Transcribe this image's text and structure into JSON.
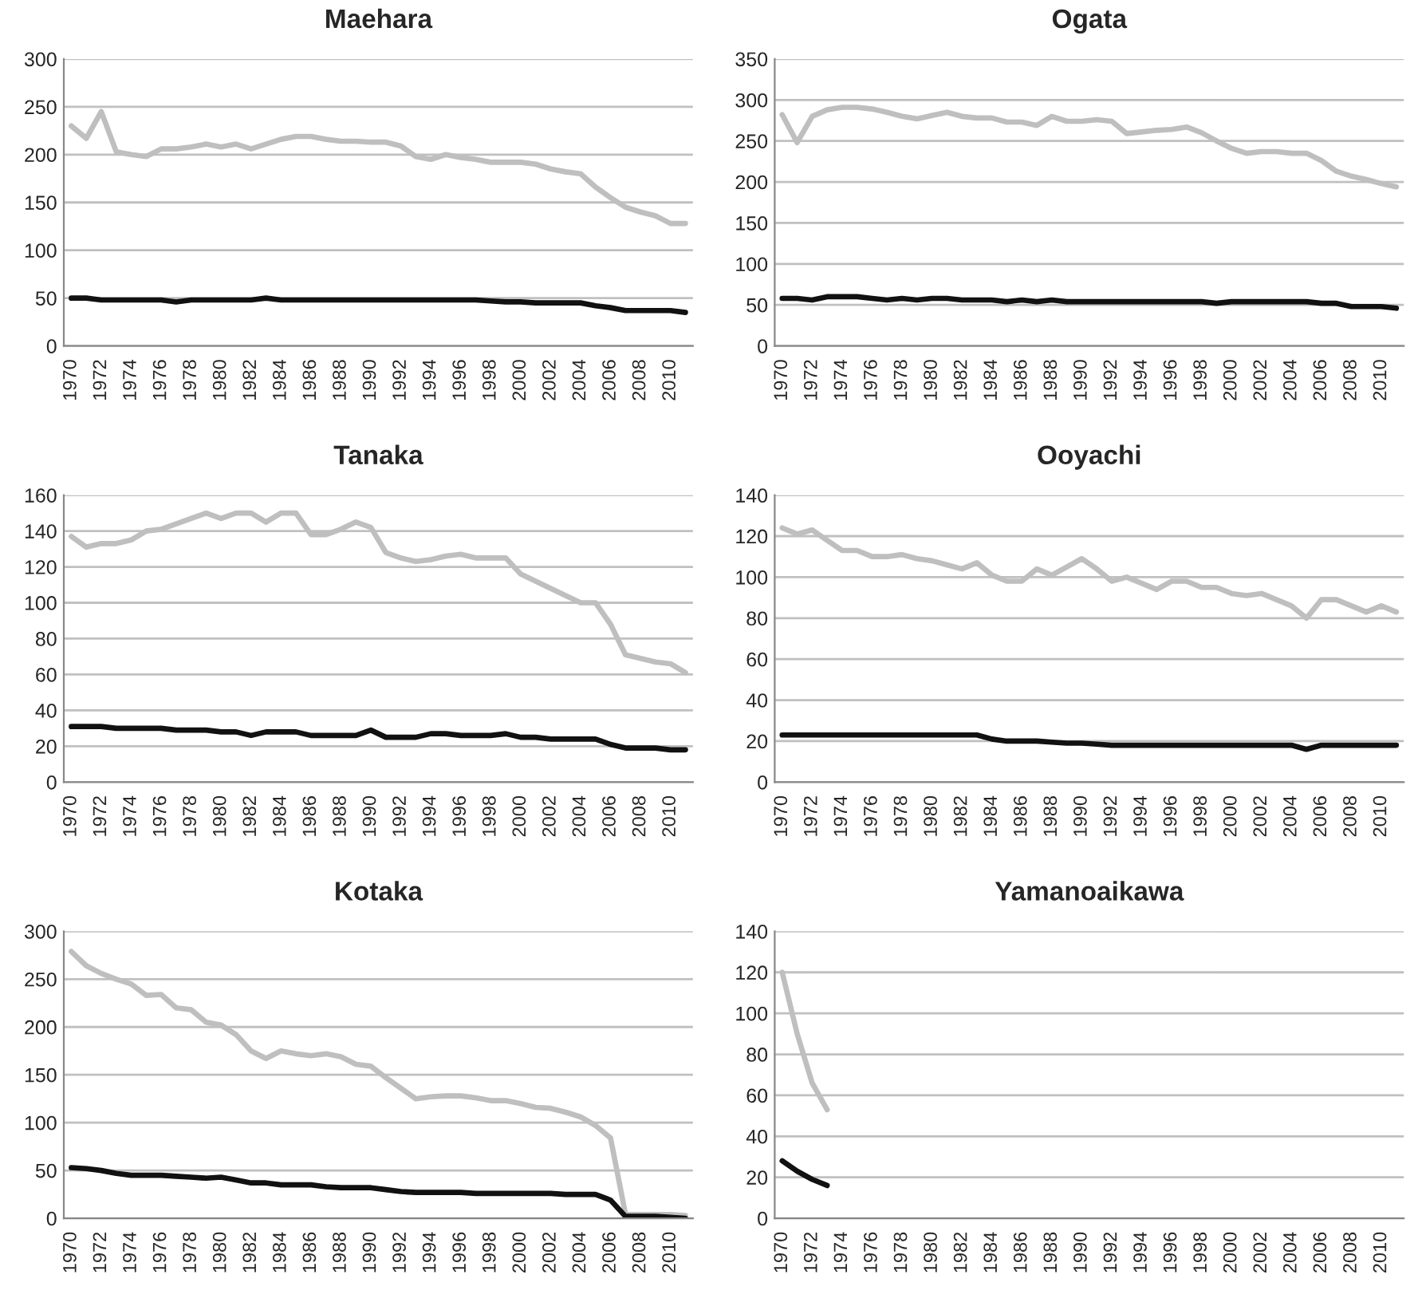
{
  "chart_data": [
    {
      "type": "line",
      "title": "Maehara",
      "categories": [
        "1970",
        null,
        "1972",
        null,
        "1974",
        null,
        "1976",
        null,
        "1978",
        null,
        "1980",
        null,
        "1982",
        null,
        "1984",
        null,
        "1986",
        null,
        "1988",
        null,
        "1990",
        null,
        "1992",
        null,
        "1994",
        null,
        "1996",
        null,
        "1998",
        null,
        "2000",
        null,
        "2002",
        null,
        "2004",
        null,
        "2006",
        null,
        "2008",
        null,
        "2010",
        null
      ],
      "ylim": [
        0,
        300
      ],
      "yticks": [
        0,
        50,
        100,
        150,
        200,
        250,
        300
      ],
      "grid": "y",
      "series": [
        {
          "color": "#bfbfbf",
          "values": [
            230,
            217,
            245,
            203,
            200,
            198,
            206,
            206,
            208,
            211,
            208,
            211,
            206,
            211,
            216,
            219,
            219,
            216,
            214,
            214,
            213,
            213,
            209,
            198,
            195,
            200,
            197,
            195,
            192,
            192,
            192,
            190,
            185,
            182,
            180,
            166,
            155,
            145,
            140,
            136,
            128,
            128
          ]
        },
        {
          "color": "#111111",
          "values": [
            50,
            50,
            48,
            48,
            48,
            48,
            48,
            46,
            48,
            48,
            48,
            48,
            48,
            50,
            48,
            48,
            48,
            48,
            48,
            48,
            48,
            48,
            48,
            48,
            48,
            48,
            48,
            48,
            47,
            46,
            46,
            45,
            45,
            45,
            45,
            42,
            40,
            37,
            37,
            37,
            37,
            35
          ]
        }
      ]
    },
    {
      "type": "line",
      "title": "Ogata",
      "categories": [
        "1970",
        null,
        "1972",
        null,
        "1974",
        null,
        "1976",
        null,
        "1978",
        null,
        "1980",
        null,
        "1982",
        null,
        "1984",
        null,
        "1986",
        null,
        "1988",
        null,
        "1990",
        null,
        "1992",
        null,
        "1994",
        null,
        "1996",
        null,
        "1998",
        null,
        "2000",
        null,
        "2002",
        null,
        "2004",
        null,
        "2006",
        null,
        "2008",
        null,
        "2010",
        null
      ],
      "ylim": [
        0,
        350
      ],
      "yticks": [
        0,
        50,
        100,
        150,
        200,
        250,
        300,
        350
      ],
      "grid": "y",
      "series": [
        {
          "color": "#bfbfbf",
          "values": [
            282,
            248,
            280,
            288,
            291,
            291,
            289,
            285,
            280,
            277,
            281,
            285,
            280,
            278,
            278,
            273,
            273,
            269,
            280,
            274,
            274,
            276,
            274,
            259,
            261,
            263,
            264,
            267,
            260,
            250,
            241,
            235,
            237,
            237,
            235,
            235,
            226,
            213,
            207,
            203,
            198,
            194
          ]
        },
        {
          "color": "#111111",
          "values": [
            58,
            58,
            56,
            60,
            60,
            60,
            58,
            56,
            58,
            56,
            58,
            58,
            56,
            56,
            56,
            54,
            56,
            54,
            56,
            54,
            54,
            54,
            54,
            54,
            54,
            54,
            54,
            54,
            54,
            52,
            54,
            54,
            54,
            54,
            54,
            54,
            52,
            52,
            48,
            48,
            48,
            46
          ]
        }
      ]
    },
    {
      "type": "line",
      "title": "Tanaka",
      "categories": [
        "1970",
        null,
        "1972",
        null,
        "1974",
        null,
        "1976",
        null,
        "1978",
        null,
        "1980",
        null,
        "1982",
        null,
        "1984",
        null,
        "1986",
        null,
        "1988",
        null,
        "1990",
        null,
        "1992",
        null,
        "1994",
        null,
        "1996",
        null,
        "1998",
        null,
        "2000",
        null,
        "2002",
        null,
        "2004",
        null,
        "2006",
        null,
        "2008",
        null,
        "2010",
        null
      ],
      "ylim": [
        0,
        160
      ],
      "yticks": [
        0,
        20,
        40,
        60,
        80,
        100,
        120,
        140,
        160
      ],
      "grid": "y",
      "series": [
        {
          "color": "#bfbfbf",
          "values": [
            137,
            131,
            133,
            133,
            135,
            140,
            141,
            144,
            147,
            150,
            147,
            150,
            150,
            145,
            150,
            150,
            138,
            138,
            141,
            145,
            142,
            128,
            125,
            123,
            124,
            126,
            127,
            125,
            125,
            125,
            116,
            112,
            108,
            104,
            100,
            100,
            88,
            71,
            69,
            67,
            66,
            61
          ]
        },
        {
          "color": "#111111",
          "values": [
            31,
            31,
            31,
            30,
            30,
            30,
            30,
            29,
            29,
            29,
            28,
            28,
            26,
            28,
            28,
            28,
            26,
            26,
            26,
            26,
            29,
            25,
            25,
            25,
            27,
            27,
            26,
            26,
            26,
            27,
            25,
            25,
            24,
            24,
            24,
            24,
            21,
            19,
            19,
            19,
            18,
            18
          ]
        }
      ]
    },
    {
      "type": "line",
      "title": "Ooyachi",
      "categories": [
        "1970",
        null,
        "1972",
        null,
        "1974",
        null,
        "1976",
        null,
        "1978",
        null,
        "1980",
        null,
        "1982",
        null,
        "1984",
        null,
        "1986",
        null,
        "1988",
        null,
        "1990",
        null,
        "1992",
        null,
        "1994",
        null,
        "1996",
        null,
        "1998",
        null,
        "2000",
        null,
        "2002",
        null,
        "2004",
        null,
        "2006",
        null,
        "2008",
        null,
        "2010",
        null
      ],
      "ylim": [
        0,
        140
      ],
      "yticks": [
        0,
        20,
        40,
        60,
        80,
        100,
        120,
        140
      ],
      "grid": "y",
      "series": [
        {
          "color": "#bfbfbf",
          "values": [
            124,
            121,
            123,
            118,
            113,
            113,
            110,
            110,
            111,
            109,
            108,
            106,
            104,
            107,
            101,
            98,
            98,
            104,
            101,
            105,
            109,
            104,
            98,
            100,
            97,
            94,
            98,
            98,
            95,
            95,
            92,
            91,
            92,
            89,
            86,
            80,
            89,
            89,
            86,
            83,
            86,
            83
          ]
        },
        {
          "color": "#111111",
          "values": [
            23,
            23,
            23,
            23,
            23,
            23,
            23,
            23,
            23,
            23,
            23,
            23,
            23,
            23,
            21,
            20,
            20,
            20,
            19.5,
            19,
            19,
            18.5,
            18,
            18,
            18,
            18,
            18,
            18,
            18,
            18,
            18,
            18,
            18,
            18,
            18,
            16,
            18,
            18,
            18,
            18,
            18,
            18
          ]
        }
      ]
    },
    {
      "type": "line",
      "title": "Kotaka",
      "categories": [
        "1970",
        null,
        "1972",
        null,
        "1974",
        null,
        "1976",
        null,
        "1978",
        null,
        "1980",
        null,
        "1982",
        null,
        "1984",
        null,
        "1986",
        null,
        "1988",
        null,
        "1990",
        null,
        "1992",
        null,
        "1994",
        null,
        "1996",
        null,
        "1998",
        null,
        "2000",
        null,
        "2002",
        null,
        "2004",
        null,
        "2006",
        null,
        "2008",
        null,
        "2010",
        null
      ],
      "ylim": [
        0,
        300
      ],
      "yticks": [
        0,
        50,
        100,
        150,
        200,
        250,
        300
      ],
      "grid": "y",
      "series": [
        {
          "color": "#bfbfbf",
          "values": [
            279,
            264,
            256,
            250,
            245,
            233,
            234,
            220,
            218,
            205,
            202,
            192,
            175,
            167,
            175,
            172,
            170,
            172,
            169,
            161,
            159,
            147,
            136,
            125,
            127,
            128,
            128,
            126,
            123,
            123,
            120,
            116,
            115,
            111,
            106,
            97,
            84,
            4,
            4,
            4,
            4,
            3
          ]
        },
        {
          "color": "#111111",
          "values": [
            53,
            52,
            50,
            47,
            45,
            45,
            45,
            44,
            43,
            42,
            43,
            40,
            37,
            37,
            35,
            35,
            35,
            33,
            32,
            32,
            32,
            30,
            28,
            27,
            27,
            27,
            27,
            26,
            26,
            26,
            26,
            26,
            26,
            25,
            25,
            25,
            19,
            2,
            2,
            2,
            1,
            0
          ]
        }
      ]
    },
    {
      "type": "line",
      "title": "Yamanoaikawa",
      "categories": [
        "1970",
        null,
        "1972",
        null,
        "1974",
        null,
        "1976",
        null,
        "1978",
        null,
        "1980",
        null,
        "1982",
        null,
        "1984",
        null,
        "1986",
        null,
        "1988",
        null,
        "1990",
        null,
        "1992",
        null,
        "1994",
        null,
        "1996",
        null,
        "1998",
        null,
        "2000",
        null,
        "2002",
        null,
        "2004",
        null,
        "2006",
        null,
        "2008",
        null,
        "2010",
        null
      ],
      "ylim": [
        0,
        140
      ],
      "yticks": [
        0,
        20,
        40,
        60,
        80,
        100,
        120,
        140
      ],
      "grid": "y",
      "series": [
        {
          "color": "#bfbfbf",
          "values": [
            120,
            90,
            66,
            53,
            null,
            null,
            null,
            null,
            null,
            null,
            null,
            null,
            null,
            null,
            null,
            null,
            null,
            null,
            null,
            null,
            null,
            null,
            null,
            null,
            null,
            null,
            null,
            null,
            null,
            null,
            null,
            null,
            null,
            null,
            null,
            null,
            null,
            null,
            null,
            null,
            null,
            null
          ]
        },
        {
          "color": "#111111",
          "values": [
            28,
            23,
            19,
            16,
            null,
            null,
            null,
            null,
            null,
            null,
            null,
            null,
            null,
            null,
            null,
            null,
            null,
            null,
            null,
            null,
            null,
            null,
            null,
            null,
            null,
            null,
            null,
            null,
            null,
            null,
            null,
            null,
            null,
            null,
            null,
            null,
            null,
            null,
            null,
            null,
            null,
            null
          ]
        }
      ]
    }
  ]
}
